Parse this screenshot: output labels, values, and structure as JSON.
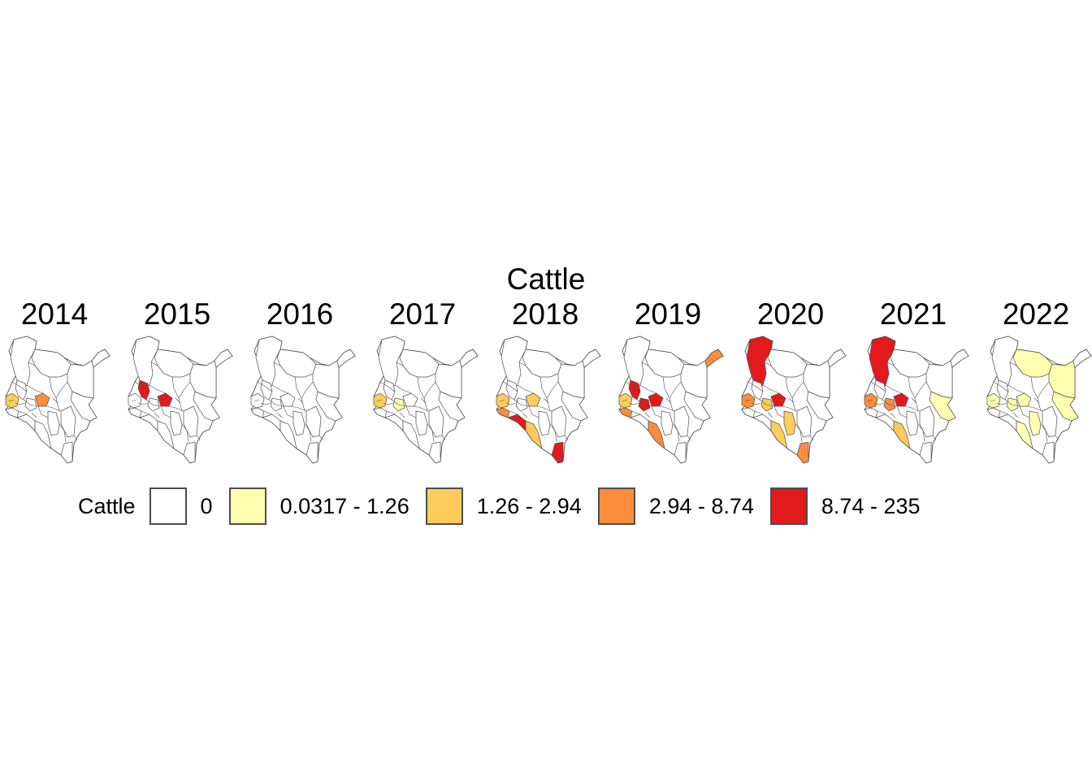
{
  "title": "Cattle",
  "legend": {
    "title": "Cattle",
    "classes": [
      {
        "label": "0",
        "color": "#ffffff"
      },
      {
        "label": "0.0317 - 1.26",
        "color": "#ffffb2"
      },
      {
        "label": "1.26 - 2.94",
        "color": "#fecc5c"
      },
      {
        "label": "2.94 - 8.74",
        "color": "#fd8d3c"
      },
      {
        "label": "8.74 - 235",
        "color": "#e31a1c"
      }
    ]
  },
  "panels": [
    {
      "year": "2014",
      "highlights": [
        {
          "region": "west-a",
          "class": 2
        },
        {
          "region": "central-a",
          "class": 3
        }
      ]
    },
    {
      "year": "2015",
      "highlights": [
        {
          "region": "rift-a",
          "class": 4
        },
        {
          "region": "central-a",
          "class": 4
        }
      ]
    },
    {
      "year": "2016",
      "highlights": []
    },
    {
      "year": "2017",
      "highlights": [
        {
          "region": "west-a",
          "class": 2
        },
        {
          "region": "central-b",
          "class": 1
        }
      ]
    },
    {
      "year": "2018",
      "highlights": [
        {
          "region": "west-b",
          "class": 3
        },
        {
          "region": "south-rift",
          "class": 4
        },
        {
          "region": "central-a",
          "class": 2
        },
        {
          "region": "kajiado",
          "class": 2
        },
        {
          "region": "coast-south",
          "class": 4
        },
        {
          "region": "west-a",
          "class": 2
        }
      ]
    },
    {
      "year": "2019",
      "highlights": [
        {
          "region": "northeast-tip",
          "class": 3
        },
        {
          "region": "rift-a",
          "class": 4
        },
        {
          "region": "central-a",
          "class": 4
        },
        {
          "region": "central-b",
          "class": 4
        },
        {
          "region": "west-a",
          "class": 2
        },
        {
          "region": "west-b",
          "class": 3
        },
        {
          "region": "kajiado",
          "class": 3
        }
      ]
    },
    {
      "year": "2020",
      "highlights": [
        {
          "region": "turkana",
          "class": 4
        },
        {
          "region": "west-a",
          "class": 3
        },
        {
          "region": "central-a",
          "class": 4
        },
        {
          "region": "makueni",
          "class": 2
        },
        {
          "region": "kajiado",
          "class": 2
        },
        {
          "region": "coast-south",
          "class": 3
        },
        {
          "region": "central-b",
          "class": 2
        }
      ]
    },
    {
      "year": "2021",
      "highlights": [
        {
          "region": "turkana",
          "class": 4
        },
        {
          "region": "west-a",
          "class": 3
        },
        {
          "region": "central-a",
          "class": 4
        },
        {
          "region": "central-b",
          "class": 3
        },
        {
          "region": "garissa",
          "class": 1
        },
        {
          "region": "kajiado",
          "class": 2
        }
      ]
    },
    {
      "year": "2022",
      "highlights": [
        {
          "region": "marsabit",
          "class": 1
        },
        {
          "region": "wajir",
          "class": 1
        },
        {
          "region": "west-a",
          "class": 1
        },
        {
          "region": "central-a",
          "class": 1
        },
        {
          "region": "central-b",
          "class": 1
        },
        {
          "region": "makueni",
          "class": 1
        },
        {
          "region": "garissa",
          "class": 1
        },
        {
          "region": "kajiado",
          "class": 1
        }
      ]
    }
  ]
}
